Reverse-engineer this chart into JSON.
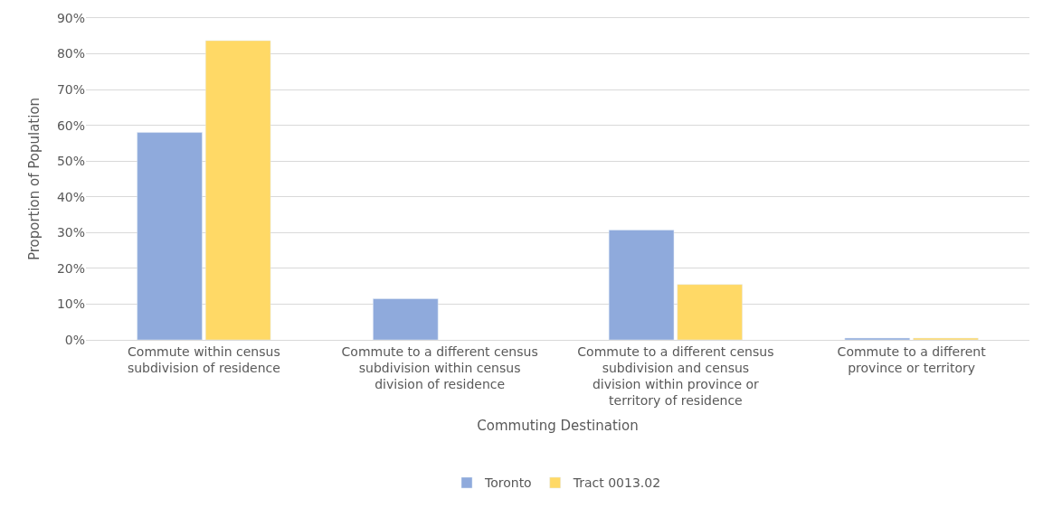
{
  "chart_data": {
    "type": "bar",
    "xlabel": "Commuting Destination",
    "ylabel": "Proportion of Population",
    "categories": [
      "Commute within census subdivision of residence",
      "Commute to a different census subdivision within census division of residence",
      "Commute to a different census subdivision and census division within province or territory of residence",
      "Commute to a different province or territory"
    ],
    "series": [
      {
        "name": "Toronto",
        "color": "#8faadc",
        "values": [
          58,
          11.5,
          30.7,
          0.5
        ]
      },
      {
        "name": "Tract 0013.02",
        "color": "#ffd966",
        "values": [
          83.7,
          null,
          15.5,
          0.5
        ]
      }
    ],
    "ylim": [
      0,
      90
    ],
    "yticks": [
      {
        "value": 0,
        "label": "0%"
      },
      {
        "value": 10,
        "label": "10%"
      },
      {
        "value": 20,
        "label": "20%"
      },
      {
        "value": 30,
        "label": "30%"
      },
      {
        "value": 40,
        "label": "40%"
      },
      {
        "value": 50,
        "label": "50%"
      },
      {
        "value": 60,
        "label": "60%"
      },
      {
        "value": 70,
        "label": "70%"
      },
      {
        "value": 80,
        "label": "80%"
      },
      {
        "value": 90,
        "label": "90%"
      }
    ],
    "grid": "y",
    "legend": "bottom"
  }
}
